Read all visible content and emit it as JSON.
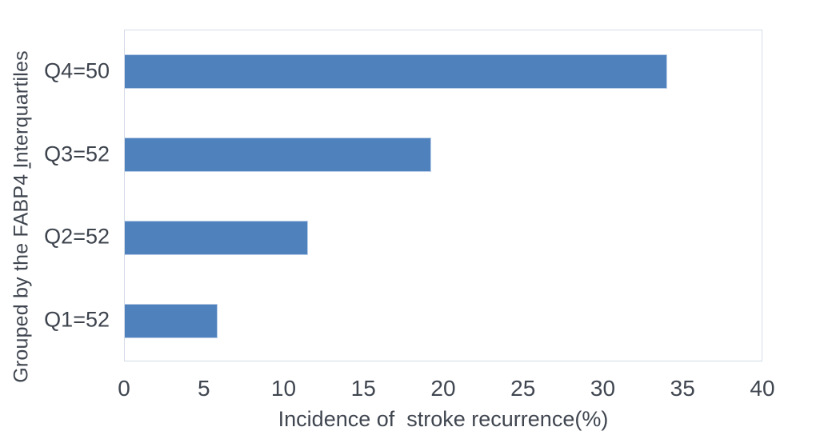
{
  "chart_data": {
    "type": "bar",
    "orientation": "horizontal",
    "row_order": "top-to-bottom",
    "categories": [
      "Q4=50",
      "Q3=52",
      "Q2=52",
      "Q1=52"
    ],
    "values": [
      34,
      19.2,
      11.5,
      5.8
    ],
    "title": "",
    "xlabel": "Incidence of  stroke recurrence(%)",
    "ylabel": {
      "pre": "Grouped by the FABP4 ",
      "underlined": "I",
      "post": "nterquartiles"
    },
    "xlim": [
      0,
      40
    ],
    "xticks": [
      0,
      5,
      10,
      15,
      20,
      25,
      30,
      35,
      40
    ],
    "grid": false,
    "legend": false,
    "bar_color": "#4f81bd",
    "bar_border_color": "#b9cde8",
    "axis_line_color": "#d3dce8",
    "text_color": "#404650"
  }
}
